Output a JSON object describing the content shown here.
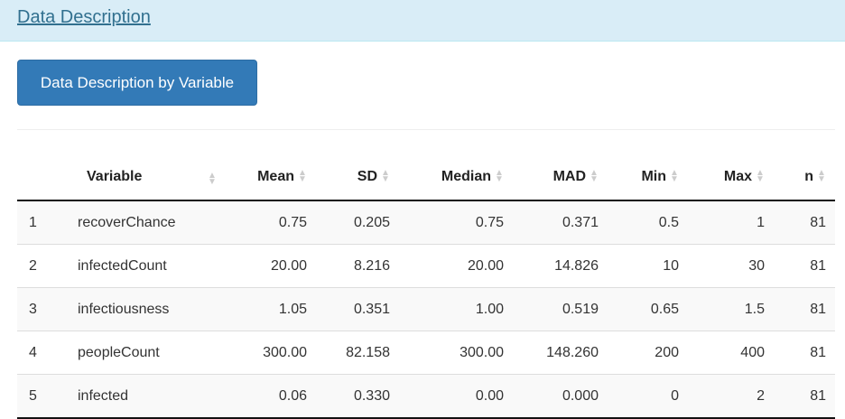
{
  "header": {
    "title": "Data Description"
  },
  "button": {
    "label": "Data Description by Variable"
  },
  "table": {
    "columns": [
      "",
      "Variable",
      "Mean",
      "SD",
      "Median",
      "MAD",
      "Min",
      "Max",
      "n"
    ],
    "rows": [
      [
        "1",
        "recoverChance",
        "0.75",
        "0.205",
        "0.75",
        "0.371",
        "0.5",
        "1",
        "81"
      ],
      [
        "2",
        "infectedCount",
        "20.00",
        "8.216",
        "20.00",
        "14.826",
        "10",
        "30",
        "81"
      ],
      [
        "3",
        "infectiousness",
        "1.05",
        "0.351",
        "1.00",
        "0.519",
        "0.65",
        "1.5",
        "81"
      ],
      [
        "4",
        "peopleCount",
        "300.00",
        "82.158",
        "300.00",
        "148.260",
        "200",
        "400",
        "81"
      ],
      [
        "5",
        "infected",
        "0.06",
        "0.330",
        "0.00",
        "0.000",
        "0",
        "2",
        "81"
      ]
    ]
  }
}
